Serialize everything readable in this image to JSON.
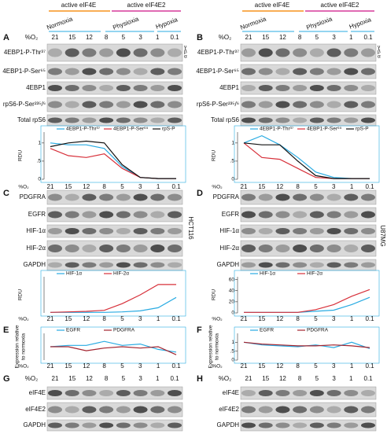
{
  "header": {
    "eif4e": "active eIF4E",
    "eif4e2": "active eIF4E2",
    "normoxia": "Normoxia",
    "physioxia": "Physioxia",
    "hypoxia": "Hypoxia"
  },
  "o2_label": "%O₂",
  "o2_levels": [
    "21",
    "15",
    "12",
    "8",
    "5",
    "3",
    "1",
    "0.1"
  ],
  "cell_lines": [
    "HCT116",
    "U87MG"
  ],
  "isoforms": [
    "γ",
    "β",
    "α"
  ],
  "panels": [
    {
      "letter": "A",
      "blots": [
        "4EBP1-P-Thr³⁷",
        "4EBP1-P-Ser⁶⁵",
        "4EBP1",
        "rpS6-P-Ser²³⁵/⁶",
        "Total rpS6"
      ]
    },
    {
      "letter": "B",
      "blots": [
        "4EBP1-P-Thr³⁷",
        "4EBP1-P-Ser⁶⁵",
        "4EBP1",
        "rpS6-P-Ser²³⁵/⁶",
        "Total rpS6"
      ]
    },
    {
      "letter": "C",
      "blots": [
        "PDGFRA",
        "EGFR",
        "HIF-1α",
        "HIF-2α",
        "GAPDH"
      ]
    },
    {
      "letter": "D",
      "blots": [
        "PDGFRA",
        "EGFR",
        "HIF-1α",
        "HIF-2α",
        "GAPDH"
      ]
    },
    {
      "letter": "E"
    },
    {
      "letter": "F"
    },
    {
      "letter": "G",
      "blots": [
        "eIF4E",
        "eIF4E2",
        "GAPDH"
      ]
    },
    {
      "letter": "H",
      "blots": [
        "eIF4E",
        "eIF4E2",
        "GAPDH"
      ]
    }
  ],
  "chart_data": [
    {
      "type": "line",
      "ylabel": [
        "RDU"
      ],
      "xlabel": "%O₂",
      "categories": [
        "21",
        "15",
        "12",
        "8",
        "5",
        "3",
        "1",
        "0.1"
      ],
      "ylim": [
        0,
        1.3
      ],
      "yticks": [
        0,
        {
          "value": 0.5,
          "label": ".5"
        },
        1
      ],
      "series": [
        {
          "name": "4EBP1-P-Thr³⁷",
          "color": "#29abe2",
          "values": [
            1,
            0.95,
            0.95,
            0.85,
            0.35,
            0.05,
            0.02,
            0.02
          ]
        },
        {
          "name": "4EBP1-P-Ser⁶⁵",
          "color": "#d7303a",
          "values": [
            0.85,
            0.65,
            0.6,
            0.7,
            0.3,
            0.05,
            0.02,
            0.02
          ]
        },
        {
          "name": "rpS-P",
          "color": "#111111",
          "values": [
            0.9,
            1.0,
            1.05,
            1.0,
            0.4,
            0.05,
            0.02,
            0.02
          ]
        }
      ]
    },
    {
      "type": "line",
      "ylabel": [
        "RDU"
      ],
      "xlabel": "%O₂",
      "categories": [
        "21",
        "15",
        "12",
        "8",
        "5",
        "3",
        "1",
        "0.1"
      ],
      "ylim": [
        0,
        1.3
      ],
      "yticks": [
        0,
        {
          "value": 0.5,
          "label": ".5"
        },
        1
      ],
      "series": [
        {
          "name": "4EBP1-P-Thr³⁷",
          "color": "#29abe2",
          "values": [
            1,
            1.2,
            0.95,
            0.6,
            0.2,
            0.05,
            0.02,
            0.02
          ]
        },
        {
          "name": "4EBP1-P-Ser⁶⁵",
          "color": "#d7303a",
          "values": [
            1,
            0.6,
            0.55,
            0.3,
            0.05,
            0.02,
            0.02,
            0.02
          ]
        },
        {
          "name": "rpS-P",
          "color": "#111111",
          "values": [
            1,
            0.95,
            0.95,
            0.5,
            0.1,
            0.02,
            0.02,
            0.02
          ]
        }
      ]
    },
    {
      "type": "line",
      "ylabel": [
        "RDU"
      ],
      "xlabel": "%O₂",
      "categories": [
        "21",
        "15",
        "12",
        "8",
        "5",
        "3",
        "1",
        "0.1"
      ],
      "ylim": [
        0,
        70
      ],
      "series": [
        {
          "name": "HIF-1α",
          "color": "#29abe2",
          "values": [
            1,
            1,
            1,
            1,
            2,
            4,
            10,
            30
          ]
        },
        {
          "name": "HIF-2α",
          "color": "#d7303a",
          "values": [
            1,
            2,
            3,
            5,
            18,
            35,
            55,
            55
          ]
        }
      ]
    },
    {
      "type": "line",
      "ylabel": [
        "RDU"
      ],
      "xlabel": "%O₂",
      "categories": [
        "21",
        "15",
        "12",
        "8",
        "5",
        "3",
        "1",
        "0.1"
      ],
      "ylim": [
        0,
        65
      ],
      "yticks": [
        0,
        20,
        40,
        60
      ],
      "series": [
        {
          "name": "HIF-1α",
          "color": "#29abe2",
          "values": [
            1,
            1,
            1,
            1,
            3,
            5,
            15,
            28
          ]
        },
        {
          "name": "HIF-2α",
          "color": "#d7303a",
          "values": [
            1,
            1,
            1,
            1,
            6,
            15,
            30,
            42
          ]
        }
      ]
    },
    {
      "type": "line",
      "ylabel": [
        "Expression relative",
        "to normoxia"
      ],
      "xlabel": "%O₂",
      "categories": [
        "21",
        "15",
        "12",
        "8",
        "5",
        "3",
        "1",
        "0.1"
      ],
      "ylim": [
        0.5,
        1.5
      ],
      "series": [
        {
          "name": "EGFR",
          "color": "#29abe2",
          "values": [
            1,
            1.05,
            1.05,
            1.2,
            1.05,
            1.1,
            0.9,
            0.8
          ]
        },
        {
          "name": "PDGFRA",
          "color": "#a3242f",
          "values": [
            1,
            1,
            0.85,
            0.95,
            1.0,
            0.95,
            1.0,
            0.7
          ]
        }
      ]
    },
    {
      "type": "line",
      "ylabel": [
        "Expression relative",
        "to normoxia"
      ],
      "xlabel": "%O₂",
      "categories": [
        "21",
        "15",
        "12",
        "8",
        "5",
        "3",
        "1",
        "0.1"
      ],
      "ylim": [
        0,
        1.5
      ],
      "yticks": [
        0,
        {
          "value": 0.5,
          "label": ".5"
        },
        1
      ],
      "series": [
        {
          "name": "EGFR",
          "color": "#29abe2",
          "values": [
            1,
            0.85,
            0.8,
            0.75,
            0.85,
            0.7,
            1.0,
            0.65
          ]
        },
        {
          "name": "PDGFRA",
          "color": "#a3242f",
          "values": [
            1,
            0.9,
            0.85,
            0.8,
            0.8,
            0.85,
            0.8,
            0.7
          ]
        }
      ]
    }
  ]
}
